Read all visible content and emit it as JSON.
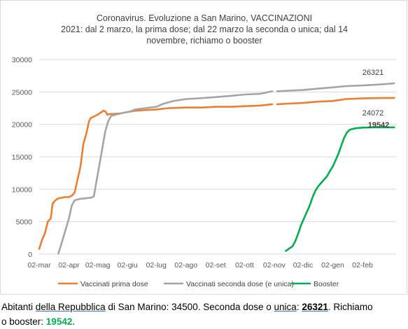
{
  "chart_data": {
    "type": "line",
    "title": [
      "Coronavirus. Evoluzione a San Marino, VACCINAZIONI",
      "2021: dal 2 marzo, la prima dose; dal  22 marzo la seconda o unica; dal 14",
      "novembre, richiamo o booster"
    ],
    "xlabel": "",
    "ylabel": "",
    "x_tick_labels": [
      "02-mar",
      "02-apr",
      "02-mag",
      "02-giu",
      "02-lug",
      "02-ago",
      "02-set",
      "02-ott",
      "02-nov",
      "02-dic",
      "02-gen",
      "02-feb"
    ],
    "x_tick_days": [
      0,
      31,
      61,
      92,
      122,
      153,
      184,
      214,
      245,
      275,
      306,
      337
    ],
    "xlim_days": [
      0,
      372
    ],
    "yticks": [
      0,
      5000,
      10000,
      15000,
      20000,
      25000,
      30000
    ],
    "y_tick_labels": [
      "0",
      "5000",
      "10000",
      "15000",
      "20000",
      "25000",
      "30000"
    ],
    "ylim": [
      0,
      30000
    ],
    "grid": "horizontal",
    "legend_position": "bottom",
    "series": [
      {
        "name": "Vaccinati prima dose",
        "color": "#ed7d31",
        "points": [
          [
            0,
            800
          ],
          [
            3,
            2200
          ],
          [
            6,
            3200
          ],
          [
            9,
            5000
          ],
          [
            12,
            5500
          ],
          [
            14,
            7800
          ],
          [
            17,
            8300
          ],
          [
            20,
            8600
          ],
          [
            24,
            8700
          ],
          [
            27,
            8800
          ],
          [
            31,
            8800
          ],
          [
            34,
            9000
          ],
          [
            37,
            9500
          ],
          [
            40,
            11500
          ],
          [
            43,
            13500
          ],
          [
            46,
            17000
          ],
          [
            49,
            18500
          ],
          [
            52,
            20500
          ],
          [
            54,
            21000
          ],
          [
            57,
            21200
          ],
          [
            61,
            21500
          ],
          [
            64,
            21800
          ],
          [
            67,
            22100
          ],
          [
            69,
            22000
          ],
          [
            71,
            21500
          ],
          [
            74,
            21600
          ],
          [
            78,
            21600
          ],
          [
            85,
            21700
          ],
          [
            92,
            21900
          ],
          [
            100,
            22100
          ],
          [
            110,
            22200
          ],
          [
            122,
            22300
          ],
          [
            135,
            22500
          ],
          [
            153,
            22600
          ],
          [
            170,
            22600
          ],
          [
            184,
            22700
          ],
          [
            200,
            22700
          ],
          [
            214,
            22800
          ],
          [
            230,
            22900
          ],
          [
            243,
            23100
          ]
        ],
        "points_after_gap": [
          [
            248,
            23100
          ],
          [
            260,
            23200
          ],
          [
            275,
            23300
          ],
          [
            290,
            23500
          ],
          [
            306,
            23600
          ],
          [
            320,
            23900
          ],
          [
            337,
            24000
          ],
          [
            355,
            24050
          ],
          [
            370,
            24072
          ]
        ]
      },
      {
        "name": "Vaccinati seconda dose (e unica)",
        "color": "#a5a5a5",
        "points": [
          [
            20,
            100
          ],
          [
            23,
            1500
          ],
          [
            26,
            3000
          ],
          [
            29,
            4500
          ],
          [
            31,
            5500
          ],
          [
            34,
            7500
          ],
          [
            37,
            8300
          ],
          [
            42,
            8500
          ],
          [
            48,
            8600
          ],
          [
            54,
            8700
          ],
          [
            57,
            8900
          ],
          [
            60,
            11500
          ],
          [
            63,
            14000
          ],
          [
            66,
            16500
          ],
          [
            69,
            19000
          ],
          [
            72,
            20500
          ],
          [
            75,
            21300
          ],
          [
            80,
            21500
          ],
          [
            88,
            21800
          ],
          [
            95,
            22000
          ],
          [
            100,
            22300
          ],
          [
            110,
            22500
          ],
          [
            122,
            22700
          ],
          [
            130,
            23200
          ],
          [
            140,
            23600
          ],
          [
            153,
            23900
          ],
          [
            165,
            24000
          ],
          [
            184,
            24200
          ],
          [
            200,
            24400
          ],
          [
            214,
            24600
          ],
          [
            230,
            24700
          ],
          [
            243,
            25100
          ]
        ],
        "points_after_gap": [
          [
            248,
            25100
          ],
          [
            260,
            25200
          ],
          [
            275,
            25300
          ],
          [
            290,
            25500
          ],
          [
            306,
            25700
          ],
          [
            320,
            25900
          ],
          [
            337,
            26000
          ],
          [
            355,
            26150
          ],
          [
            370,
            26321
          ]
        ]
      },
      {
        "name": "Booster",
        "color": "#00b050",
        "points": [
          [
            257,
            500
          ],
          [
            261,
            900
          ],
          [
            264,
            1200
          ],
          [
            267,
            2000
          ],
          [
            270,
            3200
          ],
          [
            273,
            4500
          ],
          [
            276,
            5500
          ],
          [
            279,
            6500
          ],
          [
            282,
            7500
          ],
          [
            285,
            8800
          ],
          [
            288,
            9800
          ],
          [
            291,
            10500
          ],
          [
            294,
            11000
          ],
          [
            297,
            11500
          ],
          [
            300,
            12000
          ],
          [
            303,
            12800
          ],
          [
            306,
            13500
          ],
          [
            309,
            14500
          ],
          [
            312,
            15500
          ],
          [
            315,
            16800
          ],
          [
            318,
            18000
          ],
          [
            321,
            18800
          ],
          [
            324,
            19200
          ],
          [
            330,
            19400
          ],
          [
            337,
            19500
          ],
          [
            348,
            19542
          ],
          [
            370,
            19542
          ]
        ]
      }
    ],
    "annotations": [
      {
        "text": "26321",
        "value": 26321,
        "color": "#404040",
        "bold": false
      },
      {
        "text": "24072",
        "value": 24072,
        "color": "#404040",
        "bold": false
      },
      {
        "text": "19542",
        "value": 19542,
        "color": "#00b050",
        "bold": true
      }
    ]
  },
  "caption": {
    "line1": [
      {
        "text": "Abitanti ",
        "style": ""
      },
      {
        "text": "della  Repubblica",
        "style": "u"
      },
      {
        "text": " di San Marino:  34500. Seconda dose o ",
        "style": ""
      },
      {
        "text": "unica",
        "style": "u"
      },
      {
        "text": ":  ",
        "style": ""
      },
      {
        "text": "26321",
        "style": "bu"
      },
      {
        "text": ".  Richiamo",
        "style": ""
      }
    ],
    "line2": [
      {
        "text": "o booster: ",
        "style": ""
      },
      {
        "text": "19542",
        "style": "g"
      },
      {
        "text": ".",
        "style": ""
      }
    ]
  }
}
